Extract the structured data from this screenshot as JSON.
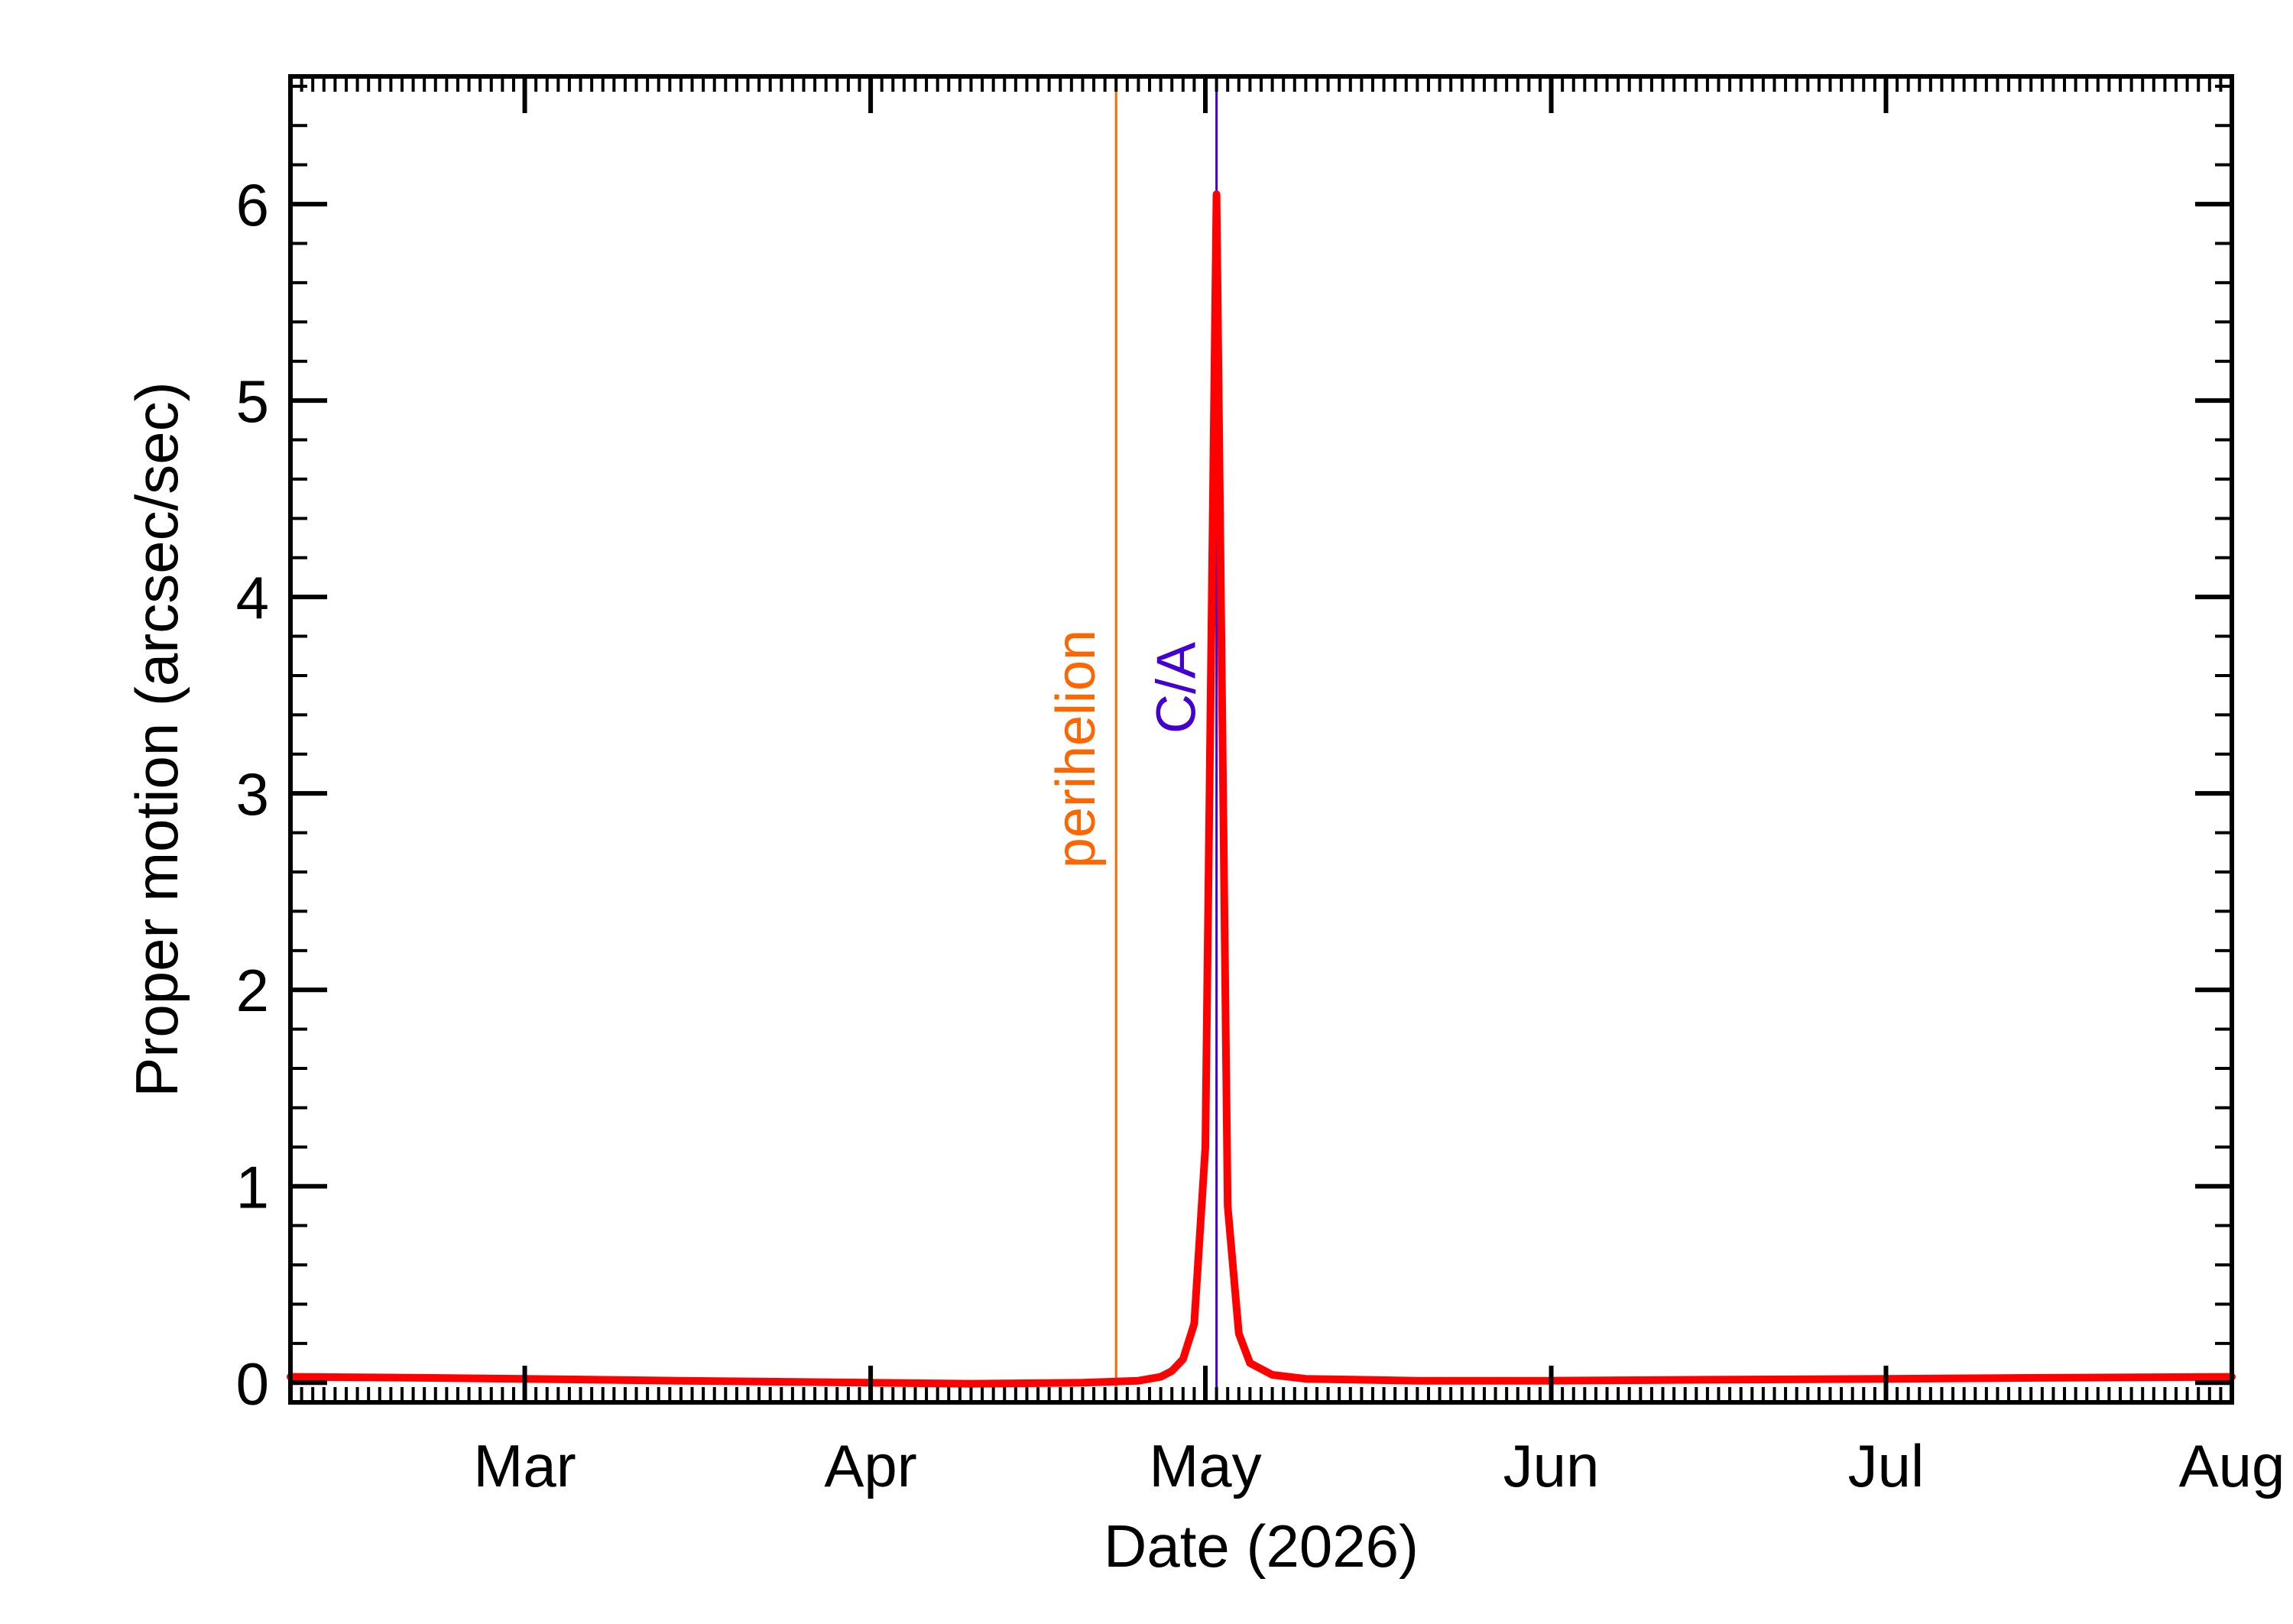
{
  "chart_data": {
    "type": "line",
    "xlabel": "Date (2026)",
    "ylabel": "Proper motion (arcsec/sec)",
    "xlim": [
      "2026-02-08",
      "2026-08-01"
    ],
    "ylim": [
      -0.1,
      6.65
    ],
    "x_ticks": [
      {
        "date": "2026-03-01",
        "label": "Mar"
      },
      {
        "date": "2026-04-01",
        "label": "Apr"
      },
      {
        "date": "2026-05-01",
        "label": "May"
      },
      {
        "date": "2026-06-01",
        "label": "Jun"
      },
      {
        "date": "2026-07-01",
        "label": "Jul"
      },
      {
        "date": "2026-08-01",
        "label": "Aug"
      }
    ],
    "y_ticks": [
      0,
      1,
      2,
      3,
      4,
      5,
      6
    ],
    "grid": false,
    "series": [
      {
        "color": "#ff0000",
        "points": [
          {
            "x": "2026-02-08",
            "y": 0.03
          },
          {
            "x": "2026-02-20",
            "y": 0.025
          },
          {
            "x": "2026-03-01",
            "y": 0.02
          },
          {
            "x": "2026-03-15",
            "y": 0.01
          },
          {
            "x": "2026-04-01",
            "y": 0.0
          },
          {
            "x": "2026-04-10",
            "y": -0.005
          },
          {
            "x": "2026-04-20",
            "y": 0.0
          },
          {
            "x": "2026-04-25",
            "y": 0.01
          },
          {
            "x": "2026-04-27",
            "y": 0.03
          },
          {
            "x": "2026-04-28",
            "y": 0.06
          },
          {
            "x": "2026-04-29",
            "y": 0.12
          },
          {
            "x": "2026-04-30",
            "y": 0.3
          },
          {
            "x": "2026-05-01",
            "y": 1.2
          },
          {
            "x": "2026-05-02",
            "y": 6.05
          },
          {
            "x": "2026-05-03",
            "y": 0.9
          },
          {
            "x": "2026-05-04",
            "y": 0.25
          },
          {
            "x": "2026-05-05",
            "y": 0.1
          },
          {
            "x": "2026-05-07",
            "y": 0.04
          },
          {
            "x": "2026-05-10",
            "y": 0.02
          },
          {
            "x": "2026-05-20",
            "y": 0.01
          },
          {
            "x": "2026-06-01",
            "y": 0.01
          },
          {
            "x": "2026-06-15",
            "y": 0.015
          },
          {
            "x": "2026-07-01",
            "y": 0.02
          },
          {
            "x": "2026-07-15",
            "y": 0.025
          },
          {
            "x": "2026-08-01",
            "y": 0.03
          }
        ]
      }
    ],
    "markers": [
      {
        "label": "perihelion",
        "date": "2026-04-23",
        "color": "#ff6600"
      },
      {
        "label": "C/A",
        "date": "2026-05-02",
        "color": "#4400cc"
      }
    ]
  }
}
